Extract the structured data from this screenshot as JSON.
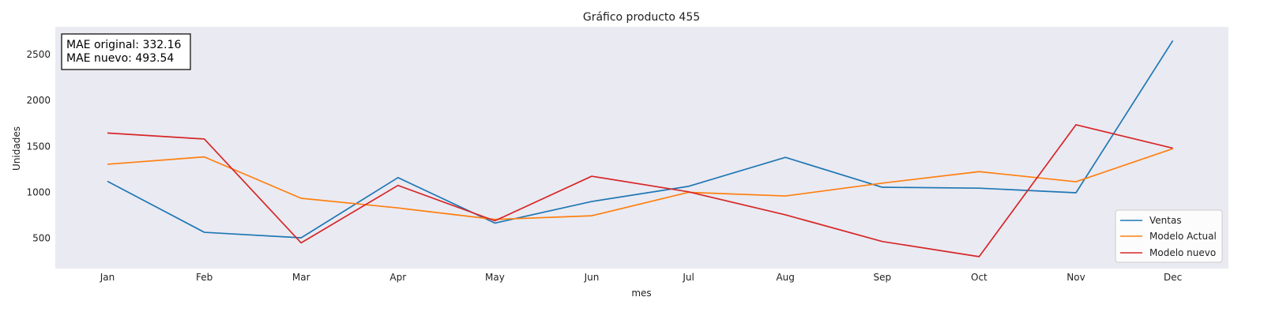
{
  "chart_data": {
    "type": "line",
    "title": "Gráfico producto 455",
    "xlabel": "mes",
    "ylabel": "Unidades",
    "categories": [
      "Jan",
      "Feb",
      "Mar",
      "Apr",
      "May",
      "Jun",
      "Jul",
      "Aug",
      "Sep",
      "Oct",
      "Nov",
      "Dec"
    ],
    "ylim": [
      170,
      2800
    ],
    "yticks": [
      500,
      1000,
      1500,
      2000,
      2500
    ],
    "grid": false,
    "legend_position": "lower-right",
    "series": [
      {
        "name": "Ventas",
        "color": "#1f77b4",
        "values": [
          1120,
          565,
          505,
          1160,
          665,
          900,
          1065,
          1380,
          1055,
          1045,
          995,
          2650
        ]
      },
      {
        "name": "Modelo Actual",
        "color": "#ff7f0e",
        "values": [
          1305,
          1385,
          935,
          830,
          705,
          745,
          1000,
          960,
          1100,
          1225,
          1115,
          1475
        ]
      },
      {
        "name": "Modelo nuevo",
        "color": "#d62728",
        "values": [
          1645,
          1580,
          450,
          1075,
          690,
          1175,
          1005,
          755,
          465,
          300,
          1735,
          1480
        ]
      }
    ],
    "annotations": [
      "MAE original: 332.16",
      "MAE nuevo: 493.54"
    ],
    "plot_background": "#eaeaf2"
  }
}
